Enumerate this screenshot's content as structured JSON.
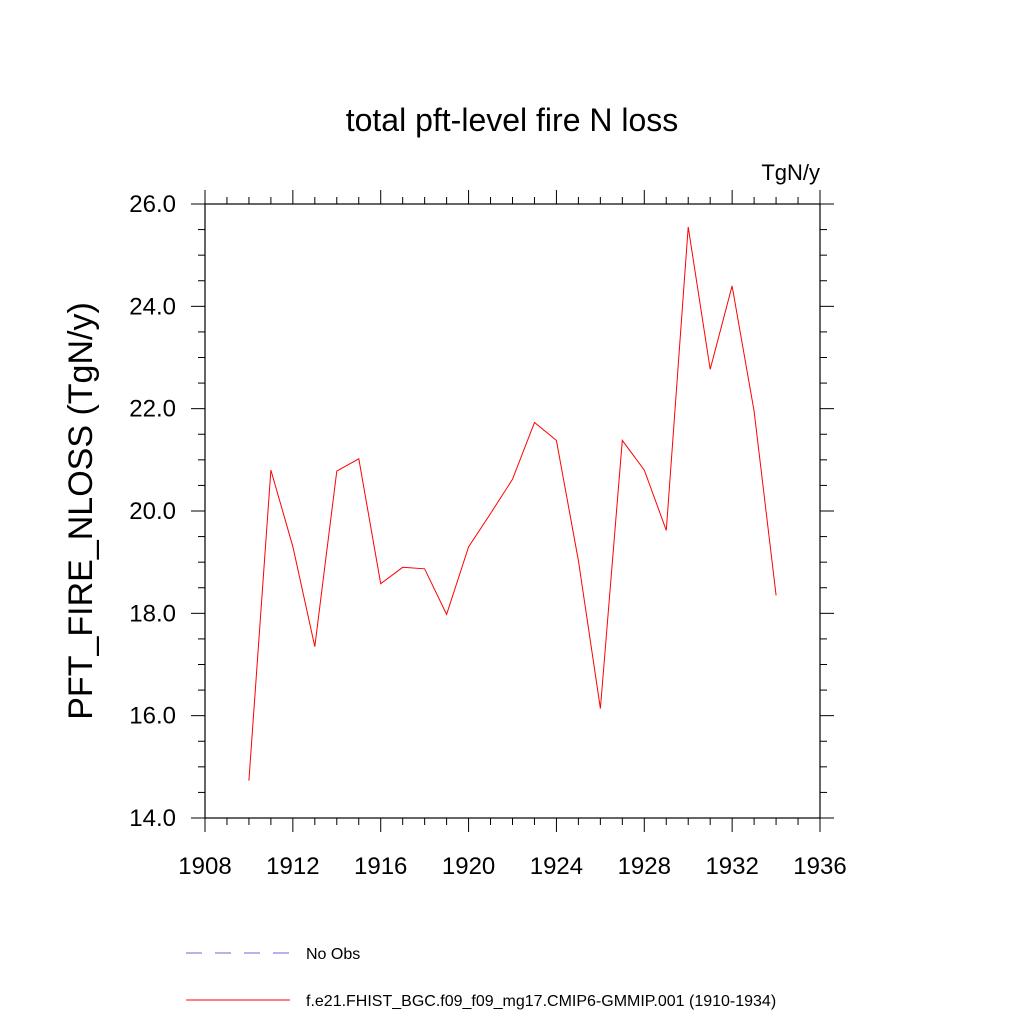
{
  "chart_data": {
    "type": "line",
    "title": "total pft-level fire N loss",
    "units": "TgN/y",
    "xlabel": "",
    "ylabel": "PFT_FIRE_NLOSS  (TgN/y)",
    "xlim": [
      1908,
      1936
    ],
    "ylim": [
      14.0,
      26.0
    ],
    "x_ticks": [
      1908,
      1912,
      1916,
      1920,
      1924,
      1928,
      1932,
      1936
    ],
    "x_tick_labels": [
      "1908",
      "1912",
      "1916",
      "1920",
      "1924",
      "1928",
      "1932",
      "1936"
    ],
    "y_ticks": [
      14.0,
      16.0,
      18.0,
      20.0,
      22.0,
      24.0,
      26.0
    ],
    "y_tick_labels": [
      "14.0",
      "16.0",
      "18.0",
      "20.0",
      "22.0",
      "24.0",
      "26.0"
    ],
    "grid": false,
    "series": [
      {
        "name": "f.e21.FHIST_BGC.f09_f09_mg17.CMIP6-GMMIP.001 (1910-1934)",
        "color": "#ff0000",
        "style": "solid",
        "x": [
          1910,
          1911,
          1912,
          1913,
          1914,
          1915,
          1916,
          1917,
          1918,
          1919,
          1920,
          1921,
          1922,
          1923,
          1924,
          1925,
          1926,
          1927,
          1928,
          1929,
          1930,
          1931,
          1932,
          1933,
          1934
        ],
        "y": [
          14.73,
          20.8,
          19.3,
          17.35,
          20.78,
          21.02,
          18.58,
          18.9,
          18.87,
          17.98,
          19.3,
          19.95,
          20.62,
          21.73,
          21.38,
          19.03,
          16.14,
          21.38,
          20.8,
          19.62,
          25.55,
          22.77,
          24.4,
          21.95,
          18.35
        ]
      }
    ],
    "legend": [
      {
        "label": "No Obs",
        "color": "#6a6ad0",
        "style": "dashed"
      },
      {
        "label": "f.e21.FHIST_BGC.f09_f09_mg17.CMIP6-GMMIP.001 (1910-1934)",
        "color": "#ff0000",
        "style": "solid"
      }
    ]
  }
}
